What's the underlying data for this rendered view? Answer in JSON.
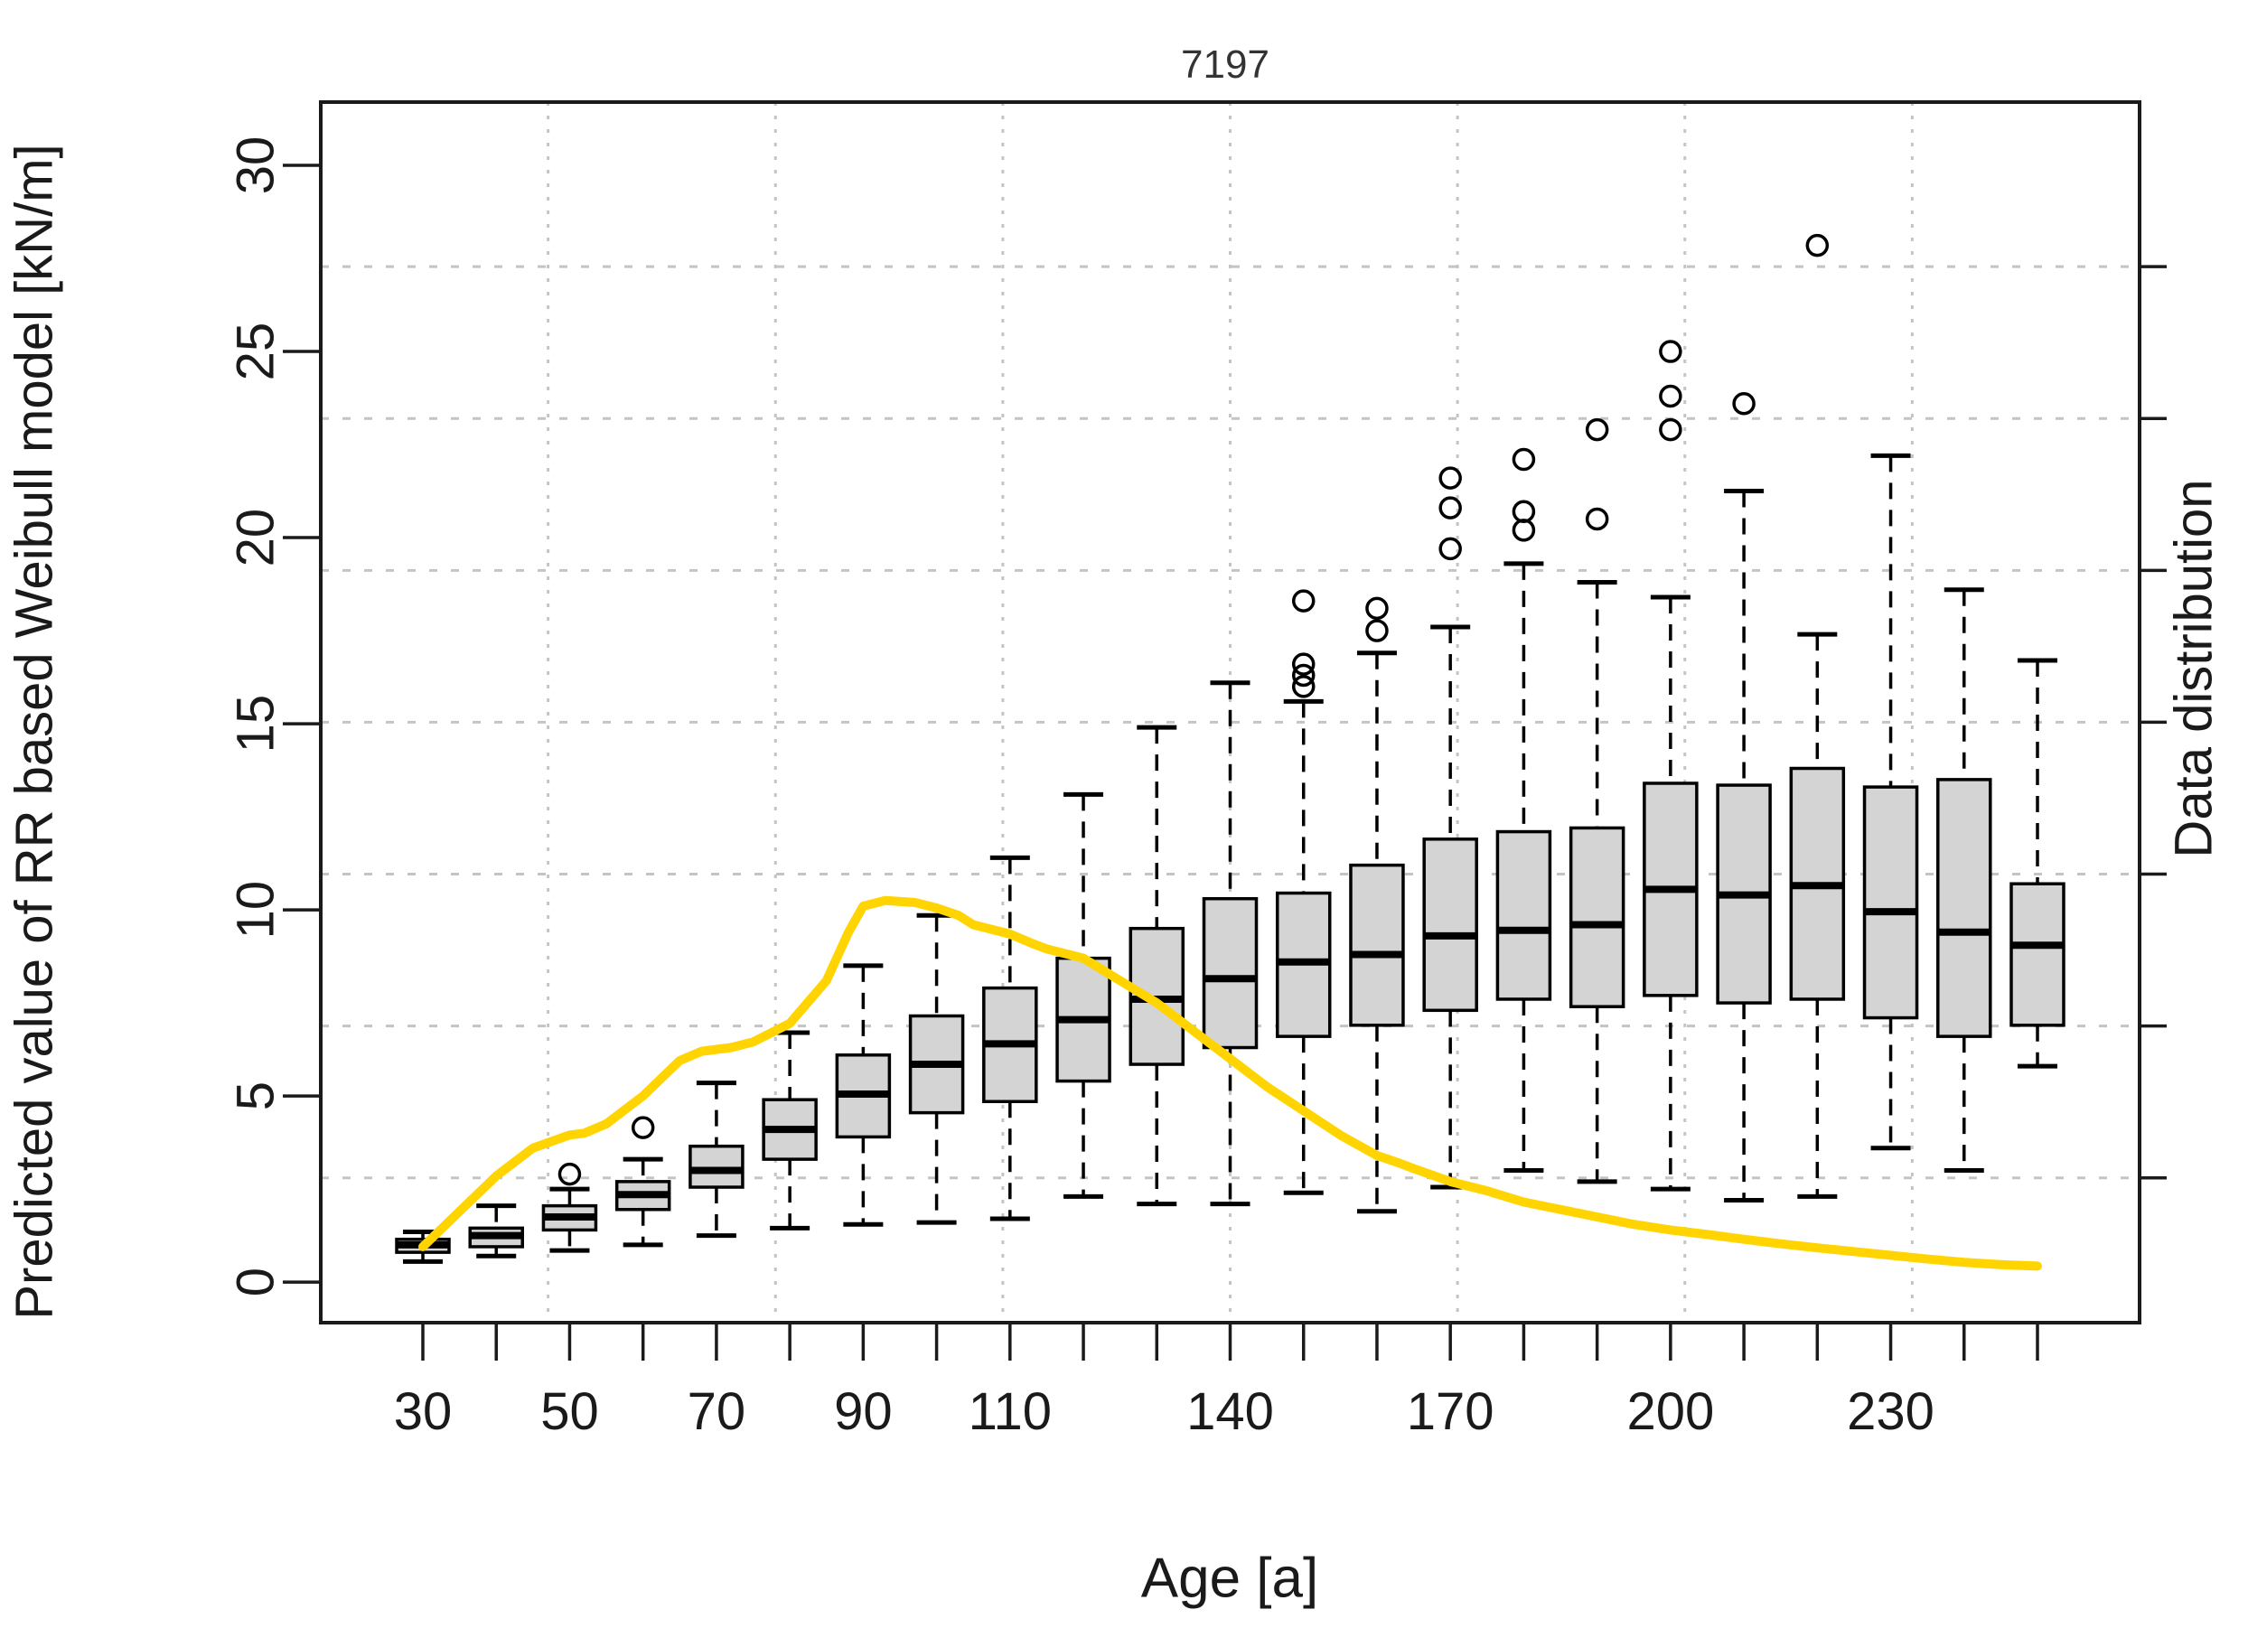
{
  "title": "7197",
  "chart_data": {
    "type": "boxplot",
    "title": "7197",
    "xlabel": "Age [a]",
    "ylabel": "Predicted value of RR based Weibull model [kN/m]",
    "ylabel_right": "Data distribution",
    "categories": [
      30,
      40,
      50,
      60,
      70,
      80,
      90,
      100,
      110,
      120,
      130,
      140,
      150,
      160,
      170,
      180,
      190,
      200,
      210,
      220,
      230,
      240,
      250
    ],
    "labeled_ticks": [
      30,
      50,
      70,
      90,
      110,
      140,
      170,
      200,
      230
    ],
    "yticks": [
      0,
      5,
      10,
      15,
      20,
      25,
      30
    ],
    "ylim": [
      -1.09,
      31.7
    ],
    "grid_h_values": [
      2.8,
      6.88,
      10.96,
      15.04,
      19.12,
      23.2,
      27.28
    ],
    "grid_v_cells": 8,
    "grid_on": true,
    "legend_position": "none",
    "colors": {
      "box_fill": "#d4d4d4",
      "box_border": "#000000",
      "median": "#000000",
      "whisker": "#000000",
      "outlier": "#000000",
      "density_line": "#ffd400",
      "gridline": "#c4c4c4",
      "axis": "#1a1a1a"
    },
    "boxes": [
      {
        "age": 30,
        "low": 0.55,
        "q1": 0.8,
        "median": 1.0,
        "q3": 1.15,
        "high": 1.35,
        "outliers": []
      },
      {
        "age": 40,
        "low": 0.7,
        "q1": 0.95,
        "median": 1.25,
        "q3": 1.45,
        "high": 2.05,
        "outliers": []
      },
      {
        "age": 50,
        "low": 0.85,
        "q1": 1.4,
        "median": 1.75,
        "q3": 2.05,
        "high": 2.5,
        "outliers": [
          2.9
        ]
      },
      {
        "age": 60,
        "low": 1.0,
        "q1": 1.95,
        "median": 2.35,
        "q3": 2.7,
        "high": 3.3,
        "outliers": [
          4.15
        ]
      },
      {
        "age": 70,
        "low": 1.25,
        "q1": 2.55,
        "median": 3.0,
        "q3": 3.65,
        "high": 5.35,
        "outliers": []
      },
      {
        "age": 80,
        "low": 1.45,
        "q1": 3.3,
        "median": 4.1,
        "q3": 4.9,
        "high": 6.7,
        "outliers": []
      },
      {
        "age": 90,
        "low": 1.55,
        "q1": 3.9,
        "median": 5.05,
        "q3": 6.1,
        "high": 8.5,
        "outliers": []
      },
      {
        "age": 100,
        "low": 1.6,
        "q1": 4.55,
        "median": 5.85,
        "q3": 7.15,
        "high": 9.85,
        "outliers": []
      },
      {
        "age": 110,
        "low": 1.7,
        "q1": 4.85,
        "median": 6.4,
        "q3": 7.9,
        "high": 11.4,
        "outliers": []
      },
      {
        "age": 120,
        "low": 2.3,
        "q1": 5.4,
        "median": 7.05,
        "q3": 8.7,
        "high": 13.1,
        "outliers": []
      },
      {
        "age": 130,
        "low": 2.1,
        "q1": 5.85,
        "median": 7.6,
        "q3": 9.5,
        "high": 14.9,
        "outliers": []
      },
      {
        "age": 140,
        "low": 2.1,
        "q1": 6.3,
        "median": 8.15,
        "q3": 10.3,
        "high": 16.1,
        "outliers": []
      },
      {
        "age": 150,
        "low": 2.4,
        "q1": 6.6,
        "median": 8.6,
        "q3": 10.45,
        "high": 15.6,
        "outliers": [
          16.0,
          16.3,
          16.6,
          18.3
        ]
      },
      {
        "age": 160,
        "low": 1.9,
        "q1": 6.9,
        "median": 8.8,
        "q3": 11.2,
        "high": 16.9,
        "outliers": [
          17.5,
          18.1
        ]
      },
      {
        "age": 170,
        "low": 2.55,
        "q1": 7.3,
        "median": 9.3,
        "q3": 11.9,
        "high": 17.6,
        "outliers": [
          19.7,
          20.8,
          21.6
        ]
      },
      {
        "age": 180,
        "low": 3.0,
        "q1": 7.6,
        "median": 9.45,
        "q3": 12.1,
        "high": 19.3,
        "outliers": [
          20.2,
          20.7,
          22.1
        ]
      },
      {
        "age": 190,
        "low": 2.7,
        "q1": 7.4,
        "median": 9.6,
        "q3": 12.2,
        "high": 18.8,
        "outliers": [
          20.5,
          22.9
        ]
      },
      {
        "age": 200,
        "low": 2.5,
        "q1": 7.7,
        "median": 10.55,
        "q3": 13.4,
        "high": 18.4,
        "outliers": [
          22.9,
          23.8,
          25.0
        ]
      },
      {
        "age": 210,
        "low": 2.2,
        "q1": 7.5,
        "median": 10.4,
        "q3": 13.35,
        "high": 21.25,
        "outliers": [
          23.6
        ]
      },
      {
        "age": 220,
        "low": 2.3,
        "q1": 7.6,
        "median": 10.65,
        "q3": 13.8,
        "high": 17.4,
        "outliers": [
          27.85
        ]
      },
      {
        "age": 230,
        "low": 3.6,
        "q1": 7.1,
        "median": 9.95,
        "q3": 13.3,
        "high": 22.2,
        "outliers": []
      },
      {
        "age": 240,
        "low": 3.0,
        "q1": 6.6,
        "median": 9.4,
        "q3": 13.5,
        "high": 18.6,
        "outliers": []
      },
      {
        "age": 250,
        "low": 5.8,
        "q1": 6.9,
        "median": 9.05,
        "q3": 10.7,
        "high": 16.7,
        "outliers": []
      }
    ],
    "series": [
      {
        "name": "Data distribution",
        "type": "line",
        "points": [
          [
            30,
            0.95
          ],
          [
            35,
            1.9
          ],
          [
            40,
            2.85
          ],
          [
            45,
            3.6
          ],
          [
            50,
            3.95
          ],
          [
            52,
            4.0
          ],
          [
            55,
            4.25
          ],
          [
            60,
            5.0
          ],
          [
            65,
            5.95
          ],
          [
            68,
            6.2
          ],
          [
            72,
            6.3
          ],
          [
            75,
            6.45
          ],
          [
            80,
            6.95
          ],
          [
            85,
            8.1
          ],
          [
            88,
            9.4
          ],
          [
            90,
            10.1
          ],
          [
            93,
            10.25
          ],
          [
            97,
            10.2
          ],
          [
            100,
            10.05
          ],
          [
            103,
            9.85
          ],
          [
            105,
            9.6
          ],
          [
            110,
            9.35
          ],
          [
            113,
            9.1
          ],
          [
            115,
            8.95
          ],
          [
            120,
            8.7
          ],
          [
            125,
            8.1
          ],
          [
            130,
            7.5
          ],
          [
            135,
            6.75
          ],
          [
            140,
            6.0
          ],
          [
            145,
            5.25
          ],
          [
            150,
            4.6
          ],
          [
            155,
            3.95
          ],
          [
            160,
            3.4
          ],
          [
            163,
            3.2
          ],
          [
            165,
            3.05
          ],
          [
            170,
            2.7
          ],
          [
            175,
            2.45
          ],
          [
            180,
            2.15
          ],
          [
            185,
            1.95
          ],
          [
            190,
            1.75
          ],
          [
            195,
            1.55
          ],
          [
            200,
            1.4
          ],
          [
            205,
            1.28
          ],
          [
            210,
            1.15
          ],
          [
            215,
            1.03
          ],
          [
            220,
            0.92
          ],
          [
            225,
            0.82
          ],
          [
            230,
            0.72
          ],
          [
            235,
            0.62
          ],
          [
            240,
            0.53
          ],
          [
            245,
            0.47
          ],
          [
            250,
            0.43
          ]
        ]
      }
    ]
  }
}
